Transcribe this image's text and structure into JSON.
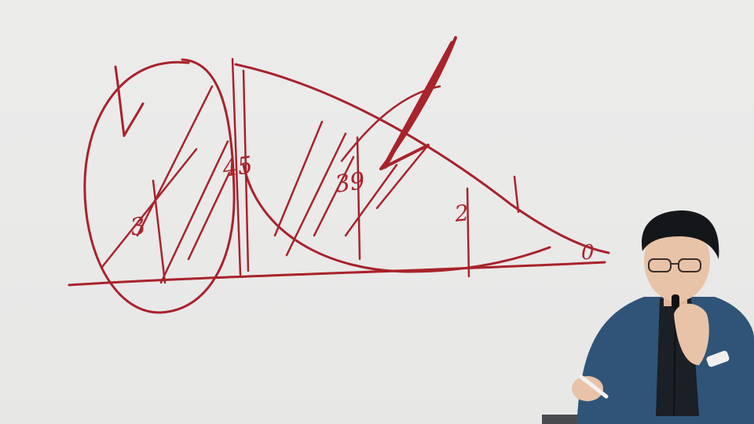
{
  "whiteboard": {
    "ink_color": "#a8232b",
    "background_color": "#e9e9e8",
    "annotations": {
      "label_1": "3",
      "label_2": "45",
      "label_3": "39",
      "label_4": "2",
      "label_5": "0"
    }
  },
  "presenter": {
    "jacket_color": "#2f5477",
    "shirt_color": "#1b1f26",
    "hair_color": "#15161a",
    "skin_color": "#e8c3a8"
  }
}
